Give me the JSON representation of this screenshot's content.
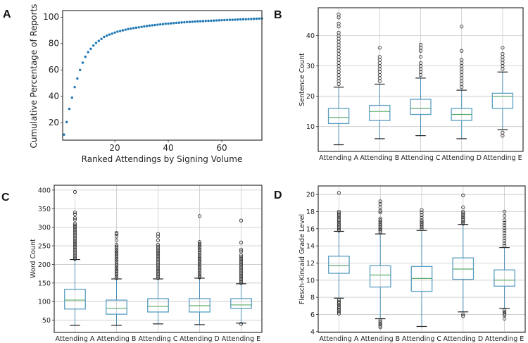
{
  "chart_data": [
    {
      "panel": "A",
      "type": "scatter",
      "xlabel": "Ranked Attendings by Signing Volume",
      "ylabel": "Cumulative Percentage of Reports",
      "xlim": [
        0.5,
        75
      ],
      "ylim": [
        6.8,
        105
      ],
      "xticks": [
        20,
        40,
        60
      ],
      "yticks": [
        20,
        40,
        60,
        80,
        100
      ],
      "grid": false,
      "color": "#1f77b4",
      "x": [
        1,
        2,
        3,
        4,
        5,
        6,
        7,
        8,
        9,
        10,
        11,
        12,
        13,
        14,
        15,
        16,
        17,
        18,
        19,
        20,
        21,
        22,
        23,
        24,
        25,
        26,
        27,
        28,
        29,
        30,
        31,
        32,
        33,
        34,
        35,
        36,
        37,
        38,
        39,
        40,
        41,
        42,
        43,
        44,
        45,
        46,
        47,
        48,
        49,
        50,
        51,
        52,
        53,
        54,
        55,
        56,
        57,
        58,
        59,
        60,
        61,
        62,
        63,
        64,
        65,
        66,
        67,
        68,
        69,
        70,
        71,
        72,
        73,
        74,
        75
      ],
      "y": [
        11,
        20.5,
        30.5,
        39,
        47,
        53.5,
        60,
        65.5,
        70,
        73.5,
        76,
        78.5,
        80.5,
        82,
        83.5,
        85,
        86,
        86.8,
        87.5,
        88.3,
        89,
        89.5,
        90,
        90.5,
        91,
        91.3,
        91.7,
        92,
        92.3,
        92.6,
        93,
        93.3,
        93.6,
        93.8,
        94,
        94.3,
        94.5,
        94.7,
        95,
        95.1,
        95.3,
        95.5,
        95.7,
        95.8,
        96,
        96.1,
        96.3,
        96.4,
        96.5,
        96.7,
        96.8,
        96.9,
        97,
        97.1,
        97.2,
        97.3,
        97.4,
        97.5,
        97.6,
        97.7,
        97.8,
        97.9,
        98,
        98,
        98.1,
        98.2,
        98.3,
        98.4,
        98.4,
        98.5,
        98.6,
        98.7,
        98.8,
        98.9,
        99
      ]
    },
    {
      "panel": "B",
      "type": "box",
      "ylabel": "Sentence Count",
      "categories": [
        "Attending A",
        "Attending B",
        "Attending C",
        "Attending D",
        "Attending E"
      ],
      "ylim": [
        1.8,
        49.2
      ],
      "yticks": [
        10,
        20,
        30,
        40
      ],
      "grid": true,
      "boxes": [
        {
          "whislo": 4,
          "q1": 11,
          "med": 13,
          "q3": 16,
          "whishi": 23,
          "fliers": [
            24,
            25,
            26,
            27,
            28,
            29,
            30,
            31,
            32,
            33,
            34,
            35,
            36,
            37,
            38,
            39,
            40,
            41,
            43,
            44,
            46,
            47
          ]
        },
        {
          "whislo": 6,
          "q1": 12,
          "med": 15,
          "q3": 17,
          "whishi": 24,
          "fliers": [
            25,
            26,
            27,
            28,
            29,
            30,
            31,
            32,
            33,
            36
          ]
        },
        {
          "whislo": 7,
          "q1": 14,
          "med": 16,
          "q3": 19,
          "whishi": 26,
          "fliers": [
            27,
            28,
            29,
            30,
            31,
            33,
            35,
            36,
            37
          ]
        },
        {
          "whislo": 6,
          "q1": 12,
          "med": 14,
          "q3": 16,
          "whishi": 22,
          "fliers": [
            23,
            24,
            25,
            26,
            27,
            28,
            29,
            30,
            31,
            32,
            35,
            43
          ]
        },
        {
          "whislo": 9,
          "q1": 16,
          "med": 20,
          "q3": 21,
          "whishi": 28,
          "fliers": [
            7,
            8,
            29,
            30,
            31,
            32,
            33,
            34,
            36
          ]
        }
      ]
    },
    {
      "panel": "C",
      "type": "box",
      "ylabel": "Word Count",
      "categories": [
        "Attending A",
        "Attending B",
        "Attending C",
        "Attending D",
        "Attending E"
      ],
      "ylim": [
        17,
        413
      ],
      "yticks": [
        50,
        100,
        150,
        200,
        250,
        300,
        350,
        400
      ],
      "grid": true,
      "boxes": [
        {
          "whislo": 36,
          "q1": 80,
          "med": 104,
          "q3": 133,
          "whishi": 213,
          "fliers": [
            215,
            220,
            225,
            230,
            235,
            240,
            245,
            250,
            255,
            260,
            265,
            270,
            275,
            280,
            285,
            290,
            295,
            300,
            305,
            310,
            320,
            325,
            335,
            340,
            395
          ]
        },
        {
          "whislo": 36,
          "q1": 66,
          "med": 82,
          "q3": 104,
          "whishi": 161,
          "fliers": [
            163,
            168,
            173,
            178,
            183,
            188,
            193,
            198,
            203,
            208,
            213,
            218,
            223,
            228,
            233,
            238,
            243,
            248,
            253,
            265,
            275,
            282,
            285
          ]
        },
        {
          "whislo": 40,
          "q1": 72,
          "med": 87,
          "q3": 108,
          "whishi": 161,
          "fliers": [
            163,
            168,
            173,
            178,
            183,
            188,
            193,
            198,
            203,
            208,
            213,
            218,
            223,
            228,
            233,
            238,
            243,
            248,
            253,
            265,
            275,
            282
          ]
        },
        {
          "whislo": 38,
          "q1": 72,
          "med": 89,
          "q3": 108,
          "whishi": 163,
          "fliers": [
            165,
            170,
            175,
            180,
            185,
            190,
            195,
            200,
            205,
            210,
            215,
            220,
            225,
            230,
            235,
            240,
            245,
            250,
            255,
            260,
            330
          ]
        },
        {
          "whislo": 42,
          "q1": 82,
          "med": 91,
          "q3": 108,
          "whishi": 148,
          "fliers": [
            40,
            150,
            155,
            160,
            165,
            170,
            175,
            180,
            185,
            190,
            195,
            200,
            205,
            210,
            215,
            220,
            225,
            235,
            240,
            259,
            318
          ]
        }
      ]
    },
    {
      "panel": "D",
      "type": "box",
      "ylabel": "Flesch-Kincaid Grade Level",
      "categories": [
        "Attending A",
        "Attending B",
        "Attending C",
        "Attending D",
        "Attending E"
      ],
      "ylim": [
        3.9,
        21
      ],
      "yticks": [
        4,
        6,
        8,
        10,
        12,
        14,
        16,
        18,
        20
      ],
      "grid": true,
      "boxes": [
        {
          "whislo": 7.9,
          "q1": 10.8,
          "med": 11.7,
          "q3": 12.8,
          "whishi": 15.7,
          "fliers": [
            6.1,
            6.3,
            6.5,
            6.7,
            6.9,
            7.1,
            7.3,
            7.5,
            7.7,
            15.8,
            16,
            16.2,
            16.4,
            16.6,
            16.8,
            17,
            17.2,
            17.4,
            17.6,
            17.8,
            18,
            20.2
          ]
        },
        {
          "whislo": 5.5,
          "q1": 9.2,
          "med": 10.6,
          "q3": 11.7,
          "whishi": 15.4,
          "fliers": [
            4.5,
            4.7,
            4.9,
            5.1,
            5.3,
            15.6,
            15.8,
            16,
            16.2,
            16.4,
            16.6,
            16.8,
            17,
            17.2,
            17.9,
            18.1,
            18.5,
            18.9,
            19.2
          ]
        },
        {
          "whislo": 4.6,
          "q1": 8.7,
          "med": 10.2,
          "q3": 11.6,
          "whishi": 15.8,
          "fliers": [
            16,
            16.2,
            16.4,
            16.6,
            16.8,
            17,
            17.3,
            17.6,
            17.9,
            18.2
          ]
        },
        {
          "whislo": 6.3,
          "q1": 10.1,
          "med": 11.3,
          "q3": 12.6,
          "whishi": 16.5,
          "fliers": [
            5.8,
            6,
            16.6,
            16.8,
            17,
            17.2,
            17.4,
            17.6,
            17.8,
            18,
            18.5,
            19.9
          ]
        },
        {
          "whislo": 6.7,
          "q1": 9.3,
          "med": 10,
          "q3": 11.2,
          "whishi": 13.8,
          "fliers": [
            5.5,
            5.9,
            6.1,
            6.3,
            6.5,
            14,
            14.3,
            14.6,
            14.9,
            15.2,
            15.5,
            15.8,
            16.1,
            16.4,
            16.7,
            17,
            17.5,
            18
          ]
        }
      ]
    }
  ]
}
